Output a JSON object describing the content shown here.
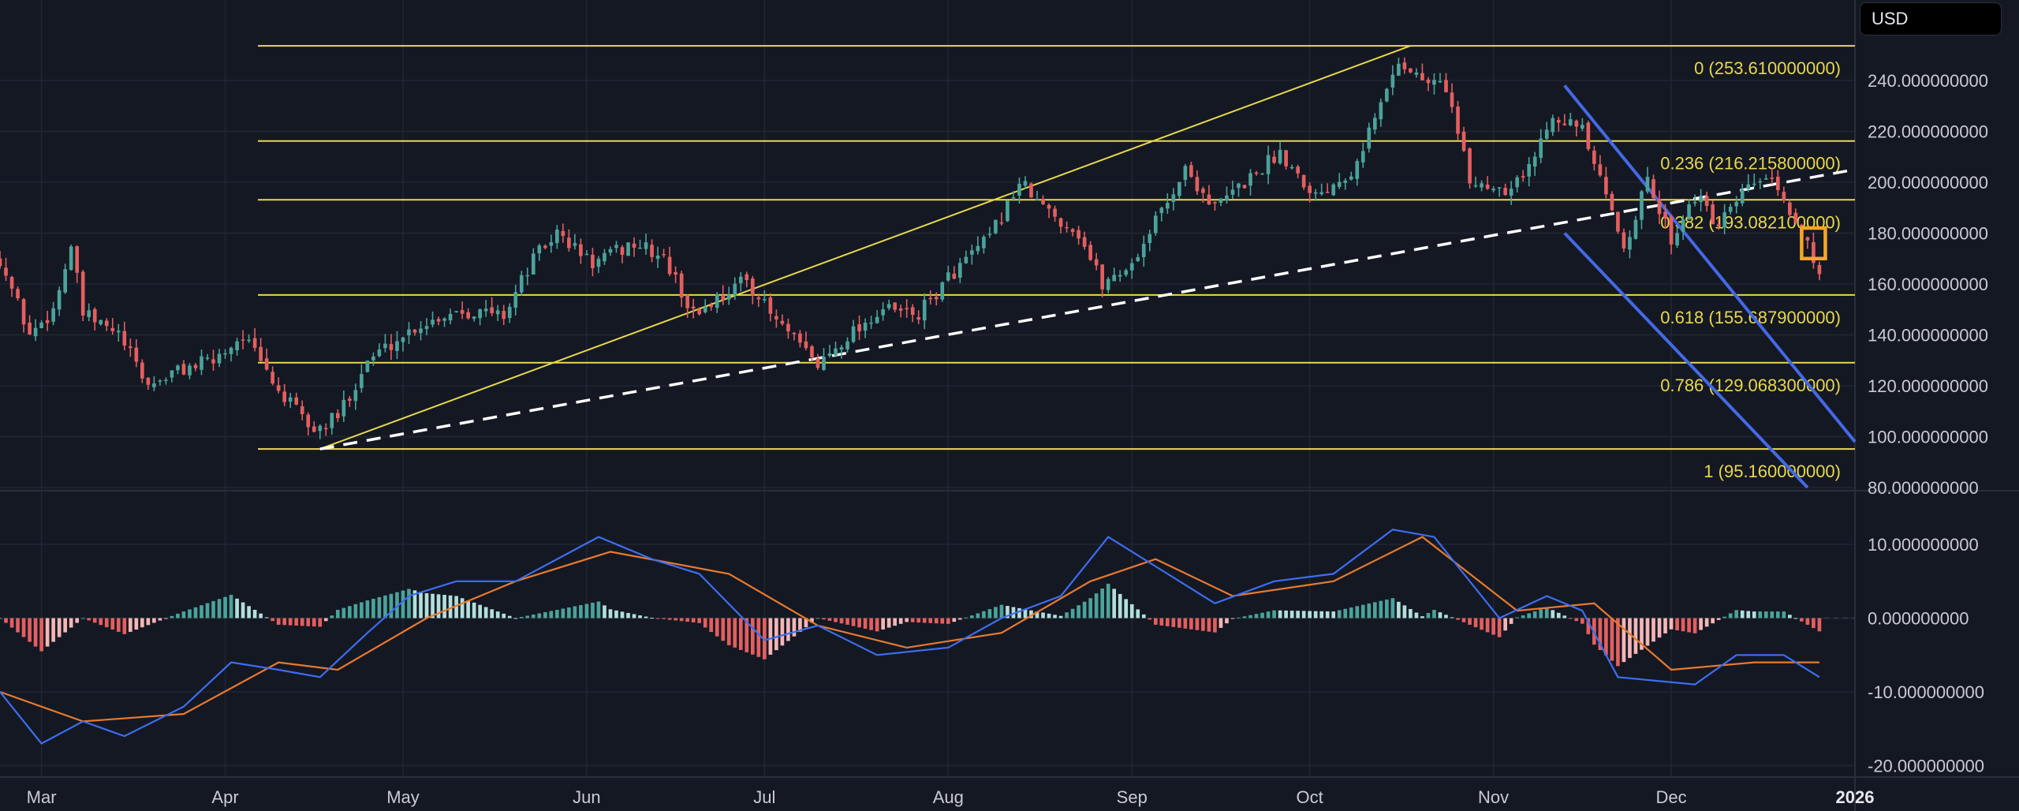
{
  "currency": "USD",
  "colors": {
    "background": "#141823",
    "grid": "#222632",
    "up": "#4aa39a",
    "down": "#e35f5f",
    "fib": "#e8d84c",
    "trend": "#ffffff",
    "channel": "#4469e6",
    "macd": "#3d6ef0",
    "signal": "#e87a2e",
    "hist_up": "#b2dfdb",
    "hist_up_strong": "#4aa39a",
    "hist_down": "#f4b6b6",
    "hist_down_strong": "#e35f5f",
    "highlight": "#f5a623",
    "axis_text": "#c8cbd3"
  },
  "chart_data": [
    {
      "type": "candlestick",
      "x_unit": "date (2025)",
      "x_range": [
        "2025-02-22",
        "2026-01-01"
      ],
      "y_range": [
        80,
        260
      ],
      "ytick_values": [
        80,
        100,
        120,
        140,
        160,
        180,
        200,
        220,
        240
      ],
      "ytick_labels": [
        "80.000000000",
        "100.000000000",
        "120.000000000",
        "140.000000000",
        "160.000000000",
        "180.000000000",
        "200.000000000",
        "220.000000000",
        "240.000000000"
      ],
      "xtick_dates": [
        "2025-03-01",
        "2025-04-01",
        "2025-05-01",
        "2025-06-01",
        "2025-07-01",
        "2025-08-01",
        "2025-09-01",
        "2025-10-01",
        "2025-11-01",
        "2025-12-01",
        "2026-01-01"
      ],
      "xtick_labels": [
        "Mar",
        "Apr",
        "May",
        "Jun",
        "Jul",
        "Aug",
        "Sep",
        "Oct",
        "Nov",
        "Dec",
        "2026"
      ],
      "close_path": [
        [
          "2025-02-22",
          170
        ],
        [
          "2025-02-27",
          140
        ],
        [
          "2025-03-03",
          150
        ],
        [
          "2025-03-06",
          175
        ],
        [
          "2025-03-08",
          148
        ],
        [
          "2025-03-14",
          140
        ],
        [
          "2025-03-19",
          120
        ],
        [
          "2025-03-24",
          126
        ],
        [
          "2025-03-30",
          130
        ],
        [
          "2025-04-04",
          140
        ],
        [
          "2025-04-10",
          118
        ],
        [
          "2025-04-16",
          102
        ],
        [
          "2025-04-20",
          108
        ],
        [
          "2025-04-25",
          130
        ],
        [
          "2025-05-03",
          143
        ],
        [
          "2025-05-10",
          150
        ],
        [
          "2025-05-18",
          148
        ],
        [
          "2025-05-23",
          170
        ],
        [
          "2025-05-27",
          180
        ],
        [
          "2025-06-02",
          168
        ],
        [
          "2025-06-09",
          176
        ],
        [
          "2025-06-14",
          170
        ],
        [
          "2025-06-19",
          148
        ],
        [
          "2025-06-24",
          156
        ],
        [
          "2025-06-28",
          162
        ],
        [
          "2025-07-02",
          148
        ],
        [
          "2025-07-06",
          138
        ],
        [
          "2025-07-10",
          128
        ],
        [
          "2025-07-15",
          140
        ],
        [
          "2025-07-21",
          150
        ],
        [
          "2025-07-27",
          148
        ],
        [
          "2025-08-02",
          165
        ],
        [
          "2025-08-08",
          178
        ],
        [
          "2025-08-13",
          200
        ],
        [
          "2025-08-17",
          190
        ],
        [
          "2025-08-23",
          180
        ],
        [
          "2025-08-27",
          160
        ],
        [
          "2025-09-01",
          168
        ],
        [
          "2025-09-05",
          185
        ],
        [
          "2025-09-10",
          205
        ],
        [
          "2025-09-15",
          190
        ],
        [
          "2025-09-20",
          200
        ],
        [
          "2025-09-26",
          212
        ],
        [
          "2025-10-02",
          195
        ],
        [
          "2025-10-08",
          205
        ],
        [
          "2025-10-12",
          225
        ],
        [
          "2025-10-16",
          248
        ],
        [
          "2025-10-20",
          240
        ],
        [
          "2025-10-24",
          238
        ],
        [
          "2025-10-28",
          200
        ],
        [
          "2025-11-03",
          198
        ],
        [
          "2025-11-07",
          205
        ],
        [
          "2025-11-11",
          228
        ],
        [
          "2025-11-16",
          220
        ],
        [
          "2025-11-19",
          200
        ],
        [
          "2025-11-23",
          175
        ],
        [
          "2025-11-27",
          200
        ],
        [
          "2025-12-01",
          178
        ],
        [
          "2025-12-05",
          195
        ],
        [
          "2025-12-09",
          182
        ],
        [
          "2025-12-14",
          198
        ],
        [
          "2025-12-17",
          202
        ],
        [
          "2025-12-22",
          184
        ],
        [
          "2025-12-24",
          178
        ],
        [
          "2025-12-26",
          162
        ]
      ],
      "fib_levels": [
        {
          "ratio": "0",
          "price": 253.61,
          "label": "0 (253.610000000)"
        },
        {
          "ratio": "0.236",
          "price": 216.2158,
          "label": "0.236 (216.215800000)"
        },
        {
          "ratio": "0.382",
          "price": 193.0821,
          "label": "0.382 (193.082100000)"
        },
        {
          "ratio": "0.618",
          "price": 155.6879,
          "label": "0.618 (155.687900000)"
        },
        {
          "ratio": "0.786",
          "price": 129.0683,
          "label": "0.786 (129.068300000)"
        },
        {
          "ratio": "1",
          "price": 95.16,
          "label": "1 (95.160000000)"
        }
      ],
      "fib_start_date": "2025-04-17",
      "fib_end_date": "2026-01-01",
      "fib_diagonal": [
        [
          "2025-04-17",
          95.16
        ],
        [
          "2025-10-18",
          253.61
        ]
      ],
      "trendline_dashed": [
        [
          "2025-04-17",
          95.16
        ],
        [
          "2026-01-01",
          205
        ]
      ],
      "channel_upper": [
        [
          "2025-11-13",
          238
        ],
        [
          "2026-01-01",
          98
        ]
      ],
      "channel_lower": [
        [
          "2025-11-13",
          180
        ],
        [
          "2025-12-24",
          80
        ]
      ],
      "highlight_box": {
        "date_from": "2025-12-23",
        "date_to": "2025-12-27",
        "price_low": 170,
        "price_high": 182
      }
    },
    {
      "type": "macd",
      "y_range": [
        -22,
        16
      ],
      "ytick_values": [
        10,
        0,
        -10,
        -20
      ],
      "ytick_labels": [
        "10.000000000",
        "0.000000000",
        "-10.000000000",
        "-20.000000000"
      ],
      "macd_line": [
        [
          "2025-02-22",
          -10
        ],
        [
          "2025-03-01",
          -17
        ],
        [
          "2025-03-08",
          -14
        ],
        [
          "2025-03-15",
          -16
        ],
        [
          "2025-03-25",
          -12
        ],
        [
          "2025-04-02",
          -6
        ],
        [
          "2025-04-10",
          -7
        ],
        [
          "2025-04-17",
          -8
        ],
        [
          "2025-04-25",
          -2
        ],
        [
          "2025-05-02",
          3
        ],
        [
          "2025-05-10",
          5
        ],
        [
          "2025-05-20",
          5
        ],
        [
          "2025-06-03",
          11
        ],
        [
          "2025-06-12",
          8
        ],
        [
          "2025-06-20",
          6
        ],
        [
          "2025-07-01",
          -3
        ],
        [
          "2025-07-10",
          -1
        ],
        [
          "2025-07-20",
          -5
        ],
        [
          "2025-08-01",
          -4
        ],
        [
          "2025-08-10",
          0
        ],
        [
          "2025-08-20",
          3
        ],
        [
          "2025-08-28",
          11
        ],
        [
          "2025-09-05",
          7
        ],
        [
          "2025-09-15",
          2
        ],
        [
          "2025-09-25",
          5
        ],
        [
          "2025-10-05",
          6
        ],
        [
          "2025-10-15",
          12
        ],
        [
          "2025-10-22",
          11
        ],
        [
          "2025-11-02",
          0
        ],
        [
          "2025-11-10",
          3
        ],
        [
          "2025-11-16",
          1
        ],
        [
          "2025-11-22",
          -8
        ],
        [
          "2025-12-05",
          -9
        ],
        [
          "2025-12-12",
          -5
        ],
        [
          "2025-12-20",
          -5
        ],
        [
          "2025-12-26",
          -8
        ]
      ],
      "signal_line": [
        [
          "2025-02-22",
          -10
        ],
        [
          "2025-03-08",
          -14
        ],
        [
          "2025-03-25",
          -13
        ],
        [
          "2025-04-10",
          -6
        ],
        [
          "2025-04-20",
          -7
        ],
        [
          "2025-05-05",
          0
        ],
        [
          "2025-05-20",
          5
        ],
        [
          "2025-06-05",
          9
        ],
        [
          "2025-06-25",
          6
        ],
        [
          "2025-07-10",
          -1
        ],
        [
          "2025-07-25",
          -4
        ],
        [
          "2025-08-10",
          -2
        ],
        [
          "2025-08-25",
          5
        ],
        [
          "2025-09-05",
          8
        ],
        [
          "2025-09-18",
          3
        ],
        [
          "2025-10-05",
          5
        ],
        [
          "2025-10-20",
          11
        ],
        [
          "2025-11-05",
          1
        ],
        [
          "2025-11-18",
          2
        ],
        [
          "2025-12-01",
          -7
        ],
        [
          "2025-12-15",
          -6
        ],
        [
          "2025-12-26",
          -6
        ]
      ],
      "hist_end_date": "2025-12-26"
    }
  ]
}
